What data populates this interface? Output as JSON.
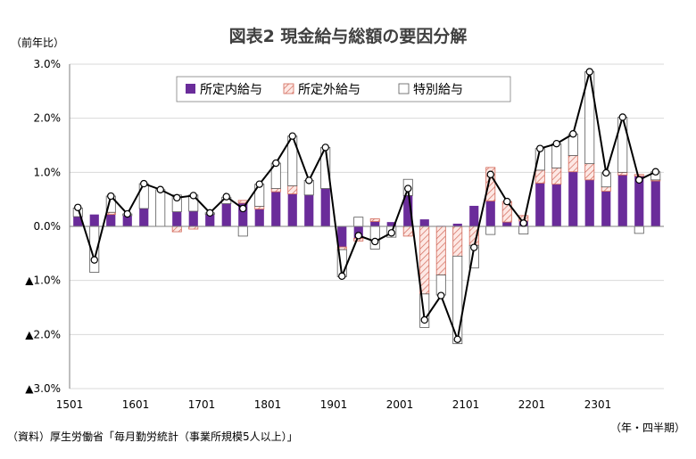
{
  "chart_data": {
    "type": "bar",
    "title": "図表2 現金給与総額の要因分解",
    "ylabel": "（前年比）",
    "xlabel": "（年・四半期）",
    "source": "（資料）厚生労働省「毎月勤労統計（事業所規模5人以上）」",
    "ylim": [
      -3.0,
      3.0
    ],
    "y_ticks": [
      "▲3.0%",
      "▲2.0%",
      "▲1.0%",
      "0.0%",
      "1.0%",
      "2.0%",
      "3.0%"
    ],
    "x_tick_labels": [
      "1501",
      "1601",
      "1701",
      "1801",
      "1901",
      "2001",
      "2101",
      "2201",
      "2301"
    ],
    "categories": [
      "1501",
      "1502",
      "1503",
      "1504",
      "1601",
      "1602",
      "1603",
      "1604",
      "1701",
      "1702",
      "1703",
      "1704",
      "1801",
      "1802",
      "1803",
      "1804",
      "1901",
      "1902",
      "1903",
      "1904",
      "2001",
      "2002",
      "2003",
      "2004",
      "2101",
      "2102",
      "2103",
      "2104",
      "2201",
      "2202",
      "2203",
      "2204",
      "2301",
      "2302",
      "2303",
      "2304"
    ],
    "legend_position": "top",
    "series": [
      {
        "name": "所定内給与",
        "kind": "bar",
        "color": "#6a2c9a",
        "values": [
          0.18,
          0.22,
          0.22,
          0.2,
          0.33,
          0.0,
          0.27,
          0.28,
          0.22,
          0.42,
          0.43,
          0.32,
          0.64,
          0.6,
          0.58,
          0.7,
          -0.38,
          -0.22,
          0.09,
          0.08,
          0.57,
          0.13,
          0.01,
          0.05,
          0.38,
          0.47,
          0.08,
          0.1,
          0.8,
          0.78,
          1.01,
          0.86,
          0.65,
          0.95,
          0.93,
          0.84
        ]
      },
      {
        "name": "所定外給与",
        "kind": "bar",
        "color": "#f4b8b0",
        "values": [
          0.0,
          0.0,
          0.04,
          0.0,
          0.0,
          0.0,
          -0.1,
          -0.05,
          0.0,
          0.0,
          0.05,
          0.05,
          0.06,
          0.15,
          0.0,
          0.0,
          -0.05,
          -0.05,
          0.05,
          0.0,
          -0.18,
          -1.25,
          -0.9,
          -0.55,
          -0.35,
          0.62,
          0.38,
          0.1,
          0.24,
          0.3,
          0.3,
          0.3,
          0.08,
          0.05,
          0.03,
          0.02
        ]
      },
      {
        "name": "特別給与",
        "kind": "bar",
        "color": "#ffffff",
        "values": [
          0.16,
          -0.85,
          0.3,
          0.03,
          0.46,
          0.68,
          0.31,
          0.3,
          0.03,
          0.12,
          -0.18,
          0.41,
          0.47,
          0.92,
          0.27,
          0.76,
          -0.5,
          0.17,
          -0.42,
          -0.2,
          0.3,
          -0.62,
          -0.37,
          -1.62,
          -0.42,
          -0.15,
          0.0,
          -0.14,
          0.4,
          0.45,
          0.4,
          1.7,
          0.26,
          1.02,
          -0.13,
          0.15
        ]
      },
      {
        "name": "現金給与総額",
        "kind": "line",
        "color": "#000000",
        "values": [
          0.35,
          -0.62,
          0.56,
          0.23,
          0.79,
          0.68,
          0.53,
          0.57,
          0.25,
          0.55,
          0.33,
          0.78,
          1.17,
          1.67,
          0.85,
          1.46,
          -0.92,
          -0.17,
          -0.28,
          -0.12,
          0.7,
          -1.73,
          -1.28,
          -2.09,
          -0.39,
          0.96,
          0.46,
          0.06,
          1.44,
          1.53,
          1.71,
          2.86,
          0.99,
          2.02,
          0.86,
          1.01
        ]
      }
    ]
  }
}
